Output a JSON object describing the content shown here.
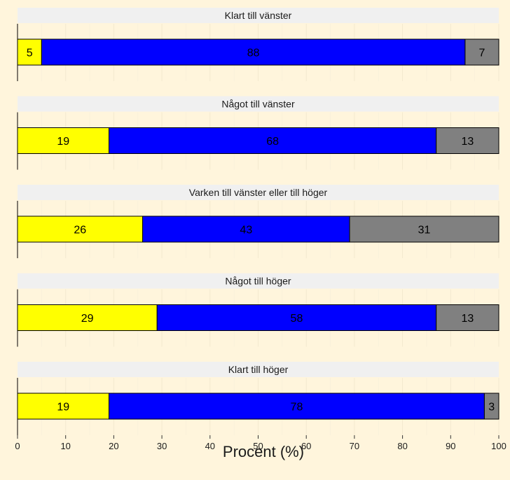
{
  "chart_data": {
    "type": "bar",
    "orientation": "horizontal",
    "stacked": true,
    "xlabel": "Procent (%)",
    "xlim": [
      0,
      100
    ],
    "x_ticks": [
      0,
      10,
      20,
      30,
      40,
      50,
      60,
      70,
      80,
      90,
      100
    ],
    "grid": true,
    "legend": "none",
    "colors": [
      "#ffff00",
      "#0000ff",
      "#808080"
    ],
    "background": "#fff5dc",
    "strip_color": "#f0f0f0",
    "panels": [
      {
        "title": "Klart till vänster",
        "values": [
          5,
          88,
          7
        ]
      },
      {
        "title": "Något till vänster",
        "values": [
          19,
          68,
          13
        ]
      },
      {
        "title": "Varken till vänster eller till höger",
        "values": [
          26,
          43,
          31
        ]
      },
      {
        "title": "Något till höger",
        "values": [
          29,
          58,
          13
        ]
      },
      {
        "title": "Klart till höger",
        "values": [
          19,
          78,
          3
        ]
      }
    ]
  }
}
